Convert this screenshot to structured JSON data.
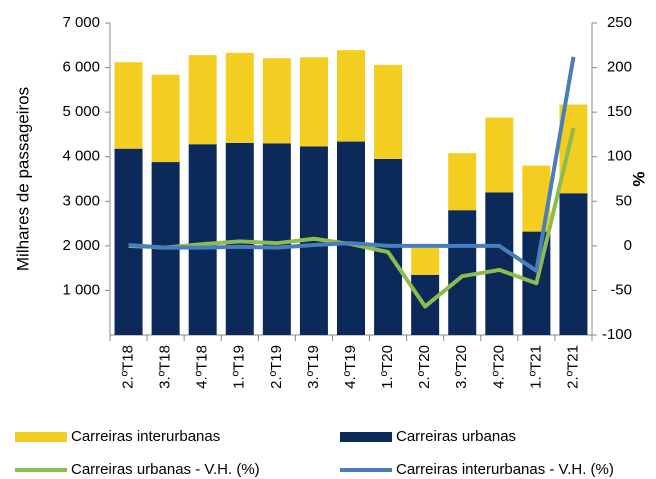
{
  "chart_data": {
    "type": "bar",
    "stacked": true,
    "y_label": "Milhares de passageiros",
    "y2_label": "%",
    "categories": [
      "2.ºT18",
      "3.ºT18",
      "4.ºT18",
      "1.ºT19",
      "2.ºT19",
      "3.ºT19",
      "4.ºT19",
      "1.ºT20",
      "2.ºT20",
      "3.ºT20",
      "4.ºT20",
      "1.ºT21",
      "2.ºT21"
    ],
    "series": [
      {
        "name": "Carreiras urbanas",
        "type": "bar",
        "color": "#0b2a59",
        "values": [
          4180,
          3880,
          4280,
          4310,
          4300,
          4230,
          4340,
          3950,
          1350,
          2800,
          3200,
          2320,
          3180
        ]
      },
      {
        "name": "Carreiras interurbanas",
        "type": "bar",
        "color": "#f3cd20",
        "values": [
          1940,
          1960,
          2000,
          2020,
          1910,
          2000,
          2050,
          2110,
          600,
          1280,
          1680,
          1480,
          1990
        ]
      },
      {
        "name": "Carreiras urbanas - V.H. (%)",
        "type": "line",
        "axis": "y2",
        "color": "#8cbb4f",
        "values": [
          0,
          -2,
          2,
          5,
          3,
          8,
          2,
          -7,
          -68,
          -34,
          -27,
          -42,
          132
        ]
      },
      {
        "name": "Carreiras interurbanas - V.H. (%)",
        "type": "line",
        "axis": "y2",
        "color": "#4a7ebb",
        "values": [
          1,
          -2,
          -2,
          -1,
          -2,
          1,
          3,
          0,
          0,
          0,
          0,
          -28,
          212
        ]
      }
    ],
    "ylim": [
      0,
      7000
    ],
    "yticks": [
      {
        "value": 1000,
        "label": "1 000"
      },
      {
        "value": 2000,
        "label": "2 000"
      },
      {
        "value": 3000,
        "label": "3 000"
      },
      {
        "value": 4000,
        "label": "4 000"
      },
      {
        "value": 5000,
        "label": "5 000"
      },
      {
        "value": 6000,
        "label": "6 000"
      },
      {
        "value": 7000,
        "label": "7 000"
      }
    ],
    "y2lim": [
      -100,
      250
    ],
    "y2ticks": [
      -100,
      -50,
      0,
      50,
      100,
      150,
      200,
      250
    ],
    "grid": false
  }
}
